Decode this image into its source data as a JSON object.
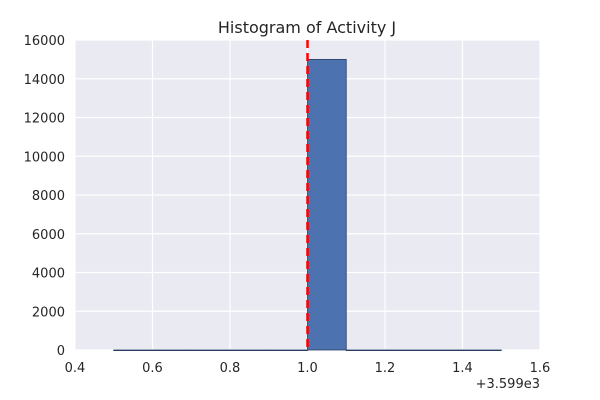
{
  "chart_data": {
    "type": "bar",
    "title": "Histogram of Activity J",
    "xlabel": "",
    "ylabel": "",
    "x_offset_label": "+3.599e3",
    "xlim": [
      0.4,
      1.6
    ],
    "ylim": [
      0,
      16000
    ],
    "x_ticks": [
      "0.4",
      "0.6",
      "0.8",
      "1.0",
      "1.2",
      "1.4",
      "1.6"
    ],
    "y_ticks": [
      "0",
      "2000",
      "4000",
      "6000",
      "8000",
      "10000",
      "12000",
      "14000",
      "16000"
    ],
    "bins": [
      {
        "start": 0.5,
        "end": 0.6,
        "count": 0
      },
      {
        "start": 0.6,
        "end": 0.7,
        "count": 0
      },
      {
        "start": 0.7,
        "end": 0.8,
        "count": 0
      },
      {
        "start": 0.8,
        "end": 0.9,
        "count": 0
      },
      {
        "start": 0.9,
        "end": 1.0,
        "count": 0
      },
      {
        "start": 1.0,
        "end": 1.1,
        "count": 15000
      },
      {
        "start": 1.1,
        "end": 1.2,
        "count": 0
      },
      {
        "start": 1.2,
        "end": 1.3,
        "count": 0
      },
      {
        "start": 1.3,
        "end": 1.4,
        "count": 0
      },
      {
        "start": 1.4,
        "end": 1.5,
        "count": 0
      }
    ],
    "reference_line": {
      "x": 1.0,
      "style": "dashed",
      "color": "#ff0000"
    },
    "grid": true,
    "colors": {
      "bar": "#4c72b0",
      "bar_edge": "#2a3f66",
      "background": "#eaeaf2",
      "grid": "#ffffff"
    }
  }
}
